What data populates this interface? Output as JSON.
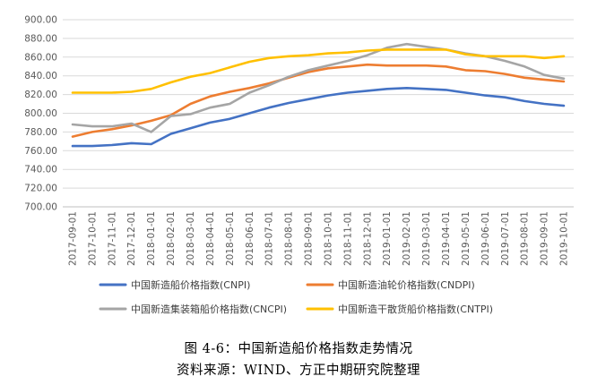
{
  "caption": {
    "title": "图 4-6：中国新造船价格指数走势情况",
    "source": "资料来源：WIND、方正中期研究院整理"
  },
  "chart_data": {
    "type": "line",
    "title": "",
    "xlabel": "",
    "ylabel": "",
    "ylim": [
      700,
      900
    ],
    "yticks": [
      "700.00",
      "720.00",
      "740.00",
      "760.00",
      "780.00",
      "800.00",
      "820.00",
      "840.00",
      "860.00",
      "880.00",
      "900.00"
    ],
    "grid": true,
    "legend_position": "bottom",
    "categories": [
      "2017-09-01",
      "2017-10-01",
      "2017-11-01",
      "2017-12-01",
      "2018-01-01",
      "2018-02-01",
      "2018-03-01",
      "2018-04-01",
      "2018-05-01",
      "2018-06-01",
      "2018-07-01",
      "2018-08-01",
      "2018-09-01",
      "2018-10-01",
      "2018-11-01",
      "2018-12-01",
      "2019-01-01",
      "2019-02-01",
      "2019-03-01",
      "2019-04-01",
      "2019-05-01",
      "2019-06-01",
      "2019-07-01",
      "2019-08-01",
      "2019-09-01",
      "2019-10-01"
    ],
    "series": [
      {
        "name": "中国新造船价格指数(CNPI)",
        "color": "#4472C4",
        "values": [
          765,
          765,
          766,
          768,
          767,
          778,
          784,
          790,
          794,
          800,
          806,
          811,
          815,
          819,
          822,
          824,
          826,
          827,
          826,
          825,
          822,
          819,
          817,
          813,
          810,
          808
        ]
      },
      {
        "name": "中国新造油轮价格指数(CNDPI)",
        "color": "#ED7D31",
        "values": [
          775,
          780,
          783,
          787,
          792,
          798,
          810,
          818,
          823,
          827,
          832,
          838,
          844,
          848,
          850,
          852,
          851,
          851,
          851,
          850,
          846,
          845,
          842,
          838,
          836,
          834
        ]
      },
      {
        "name": "中国新造集装箱船价格指数(CNCPI)",
        "color": "#A5A5A5",
        "values": [
          788,
          786,
          786,
          789,
          780,
          797,
          799,
          806,
          810,
          822,
          830,
          839,
          846,
          851,
          856,
          862,
          870,
          874,
          871,
          868,
          864,
          861,
          856,
          850,
          841,
          837
        ]
      },
      {
        "name": "中国新造干散货船价格指数(CNTPI)",
        "color": "#FFC000",
        "values": [
          822,
          822,
          822,
          823,
          826,
          833,
          839,
          843,
          849,
          855,
          859,
          861,
          862,
          864,
          865,
          867,
          868,
          868,
          868,
          868,
          863,
          861,
          861,
          861,
          859,
          861
        ]
      }
    ]
  }
}
